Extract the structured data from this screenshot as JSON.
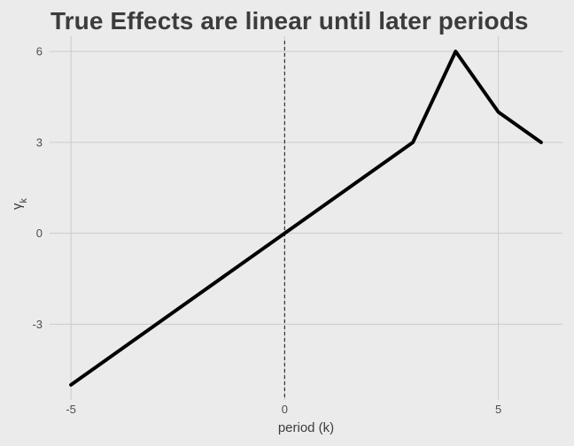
{
  "chart_data": {
    "type": "line",
    "title": "True Effects are linear until later periods",
    "xlabel": "period (k)",
    "ylabel": "γ",
    "ylabel_subscript": "k",
    "x": [
      -5,
      -4,
      -3,
      -2,
      -1,
      0,
      1,
      2,
      3,
      4,
      5,
      6
    ],
    "y": [
      -5,
      -4,
      -3,
      -2,
      -1,
      0,
      1,
      2,
      3,
      6,
      4,
      3
    ],
    "xlim": [
      -5.5,
      6.5
    ],
    "ylim": [
      -5.5,
      6.5
    ],
    "xticks": [
      -5,
      0,
      5
    ],
    "yticks": [
      -3,
      0,
      3,
      6
    ],
    "xtick_labels": [
      "-5",
      "0",
      "5"
    ],
    "ytick_labels": [
      "-3",
      "0",
      "3",
      "6"
    ],
    "reference_vline": 0,
    "grid": true,
    "line_color": "#000000",
    "grid_color": "#cbcbcb",
    "background_color": "#ebebeb"
  }
}
